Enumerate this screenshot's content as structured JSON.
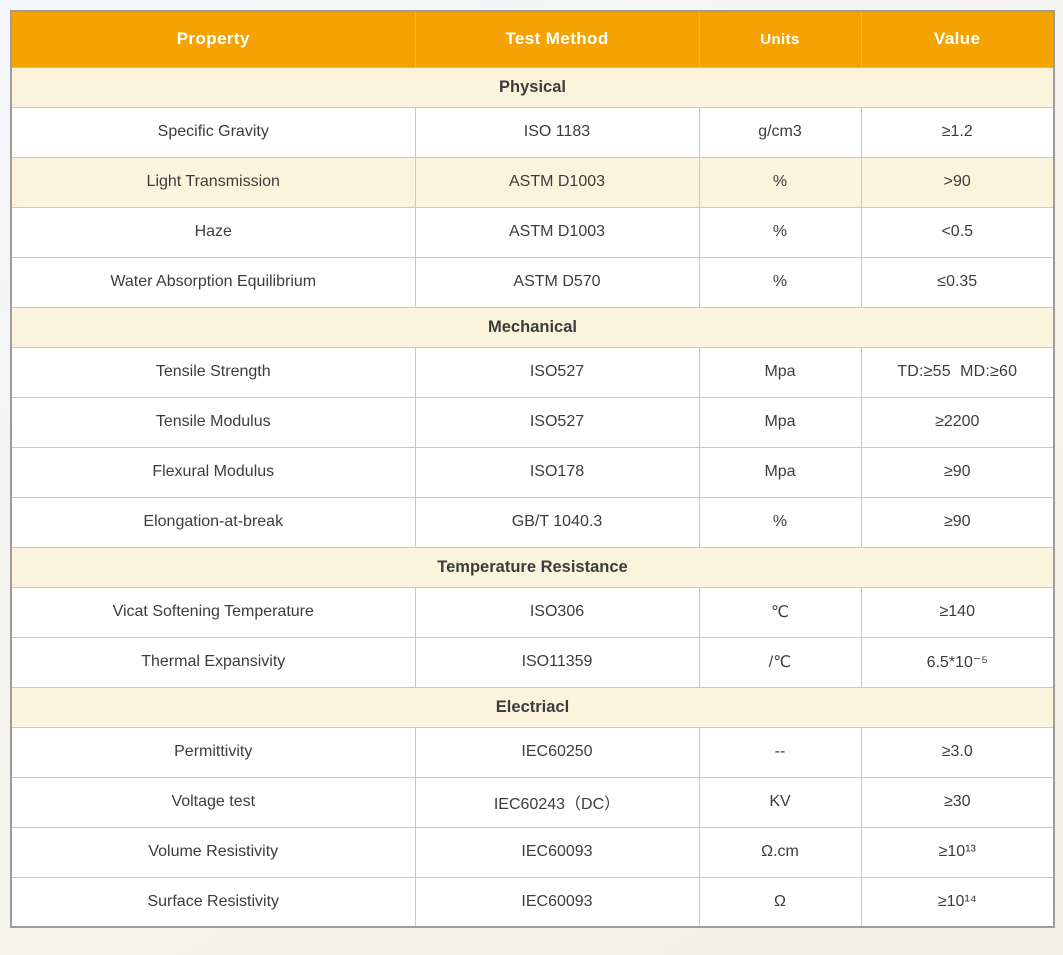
{
  "theme": {
    "header_bg": "#f5a302",
    "header_text": "#ffffff",
    "section_bg": "#fcf3dc",
    "highlight_row_bg": "#fcf3dc",
    "border_outer": "#9d9c98",
    "border_inner": "#cbc9c4",
    "body_text": "#3c3c3c"
  },
  "table": {
    "headers": [
      {
        "label": "Property"
      },
      {
        "label": "Test Method"
      },
      {
        "label": "Units"
      },
      {
        "label": "Value"
      }
    ],
    "sections": [
      {
        "title": "Physical",
        "rows": [
          {
            "property": "Specific Gravity",
            "method": "ISO 1183",
            "units": "g/cm3",
            "value": "≥1.2"
          },
          {
            "property": "Light Transmission",
            "method": "ASTM D1003",
            "units": "%",
            "value": ">90"
          },
          {
            "property": "Haze",
            "method": "ASTM D1003",
            "units": "%",
            "value": "<0.5"
          },
          {
            "property": "Water Absorption Equilibrium",
            "method": "ASTM D570",
            "units": "%",
            "value": "≤0.35"
          }
        ]
      },
      {
        "title": "Mechanical",
        "rows": [
          {
            "property": "Tensile Strength",
            "method": "ISO527",
            "units": "Mpa",
            "value": "TD:≥55  MD:≥60"
          },
          {
            "property": "Tensile Modulus",
            "method": "ISO527",
            "units": "Mpa",
            "value": "≥2200"
          },
          {
            "property": "Flexural Modulus",
            "method": "ISO178",
            "units": "Mpa",
            "value": "≥90"
          },
          {
            "property": "Elongation-at-break",
            "method": "GB/T 1040.3",
            "units": "%",
            "value": "≥90"
          }
        ]
      },
      {
        "title": "Temperature Resistance",
        "rows": [
          {
            "property": "Vicat Softening Temperature",
            "method": "ISO306",
            "units": "℃",
            "value": "≥140"
          },
          {
            "property": "Thermal Expansivity",
            "method": "ISO11359",
            "units": "/℃",
            "value": "6.5*10⁻⁵"
          }
        ]
      },
      {
        "title": "Electriacl",
        "rows": [
          {
            "property": "Permittivity",
            "method": "IEC60250",
            "units": "--",
            "value": "≥3.0"
          },
          {
            "property": "Voltage test",
            "method": "IEC60243（DC）",
            "units": "KV",
            "value": "≥30"
          },
          {
            "property": "Volume Resistivity",
            "method": "IEC60093",
            "units": "Ω.cm",
            "value": "≥10¹³"
          },
          {
            "property": "Surface Resistivity",
            "method": "IEC60093",
            "units": "Ω",
            "value": "≥10¹⁴"
          }
        ]
      }
    ]
  }
}
